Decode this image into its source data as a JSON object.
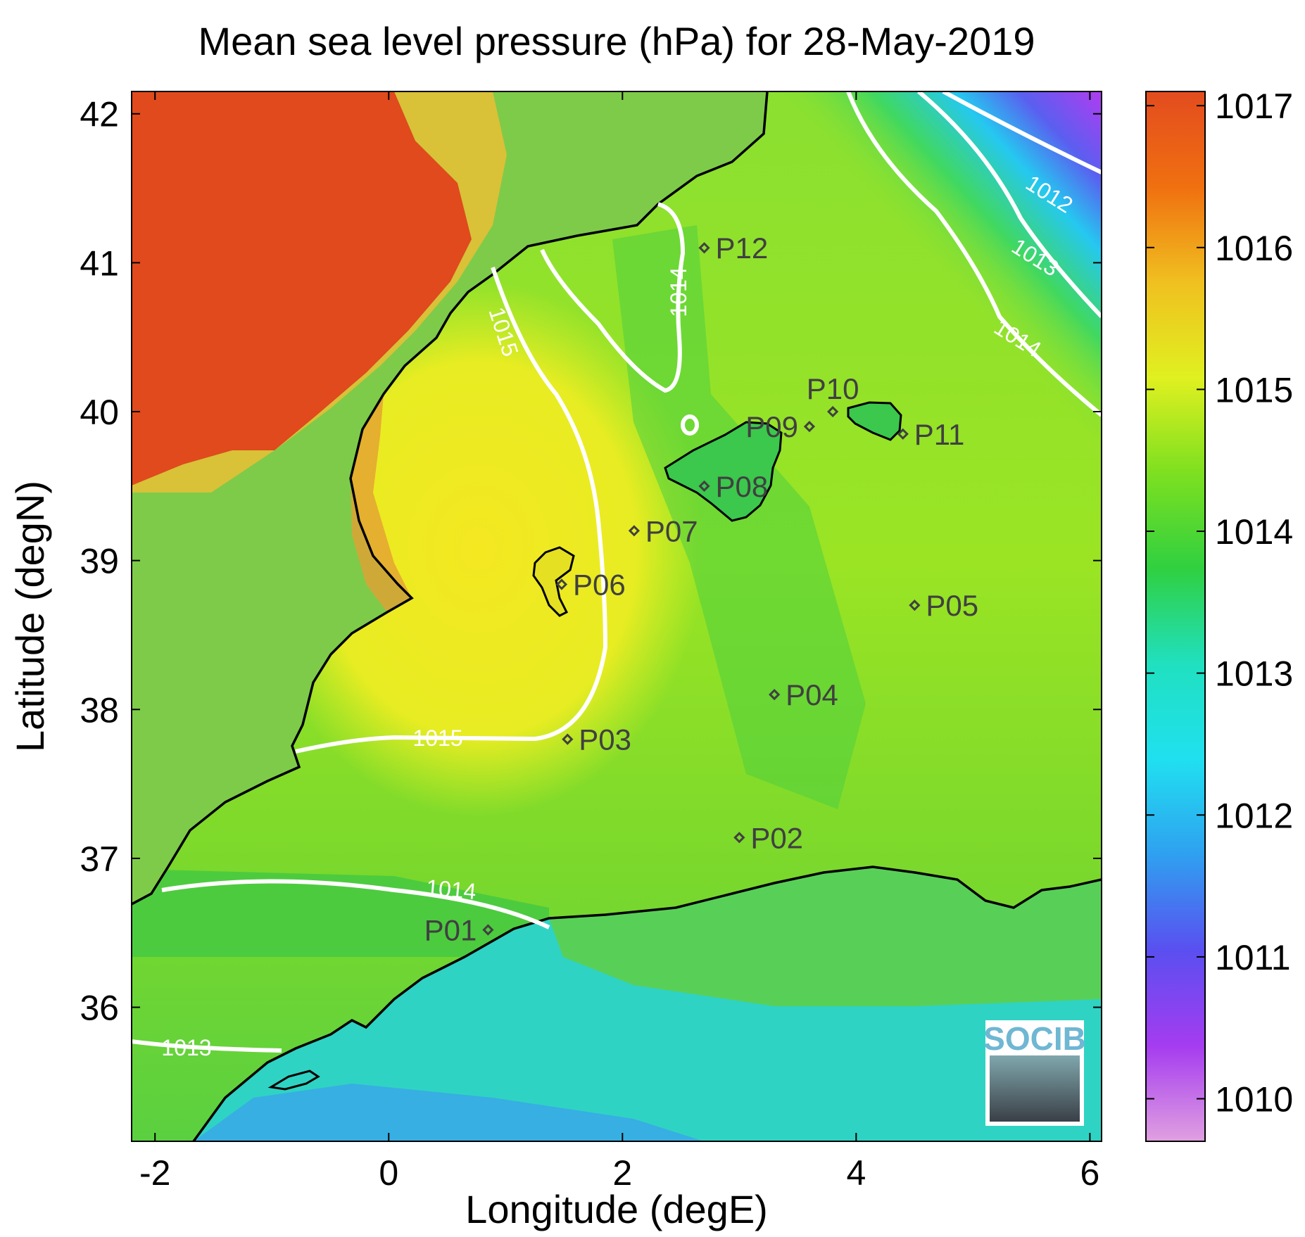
{
  "figure": {
    "title": "Mean sea level pressure (hPa) for 28-May-2019",
    "xlabel": "Longitude (degE)",
    "ylabel": "Latitude (degN)"
  },
  "map": {
    "xlim": [
      -2.2,
      6.1
    ],
    "ylim": [
      35.1,
      42.15
    ],
    "x_ticks": [
      -2,
      0,
      2,
      4,
      6
    ],
    "y_ticks": [
      36,
      37,
      38,
      39,
      40,
      41,
      42
    ],
    "colors": {
      "land_high": "#e34c1f",
      "coastline": "#000000",
      "contour": "#ffffff",
      "station_marker": "#404040"
    },
    "stations": [
      {
        "name": "P01",
        "lon": 0.85,
        "lat": 36.52,
        "label_side": "left"
      },
      {
        "name": "P02",
        "lon": 3.0,
        "lat": 37.14,
        "label_side": "right"
      },
      {
        "name": "P03",
        "lon": 1.53,
        "lat": 37.8,
        "label_side": "right"
      },
      {
        "name": "P04",
        "lon": 3.3,
        "lat": 38.1,
        "label_side": "right"
      },
      {
        "name": "P05",
        "lon": 4.5,
        "lat": 38.7,
        "label_side": "right"
      },
      {
        "name": "P06",
        "lon": 1.48,
        "lat": 38.84,
        "label_side": "right"
      },
      {
        "name": "P07",
        "lon": 2.1,
        "lat": 39.2,
        "label_side": "right"
      },
      {
        "name": "P08",
        "lon": 2.7,
        "lat": 39.5,
        "label_side": "right"
      },
      {
        "name": "P09",
        "lon": 3.6,
        "lat": 39.9,
        "label_side": "left"
      },
      {
        "name": "P10",
        "lon": 3.8,
        "lat": 40.0,
        "label_side": "above"
      },
      {
        "name": "P11",
        "lon": 4.4,
        "lat": 39.85,
        "label_side": "right"
      },
      {
        "name": "P12",
        "lon": 2.7,
        "lat": 41.1,
        "label_side": "right"
      }
    ],
    "contour_labels": [
      "1012",
      "1013",
      "1014",
      "1014",
      "1015",
      "1015",
      "1014",
      "1013"
    ],
    "logo_text": "SOCIB"
  },
  "colorbar": {
    "range": [
      1009.7,
      1017.1
    ],
    "ticks": [
      1010,
      1011,
      1012,
      1013,
      1014,
      1015,
      1016,
      1017
    ],
    "tick_labels": [
      "1010",
      "1011",
      "1012",
      "1013",
      "1014",
      "1015",
      "1016",
      "1017"
    ],
    "stops": [
      "#e0a0e0",
      "#a53cf0",
      "#5a4ff0",
      "#2fa0f0",
      "#20e0f0",
      "#20e0c0",
      "#30d040",
      "#7de020",
      "#e0f020",
      "#f0c020",
      "#f07010",
      "#e34c1f"
    ]
  }
}
